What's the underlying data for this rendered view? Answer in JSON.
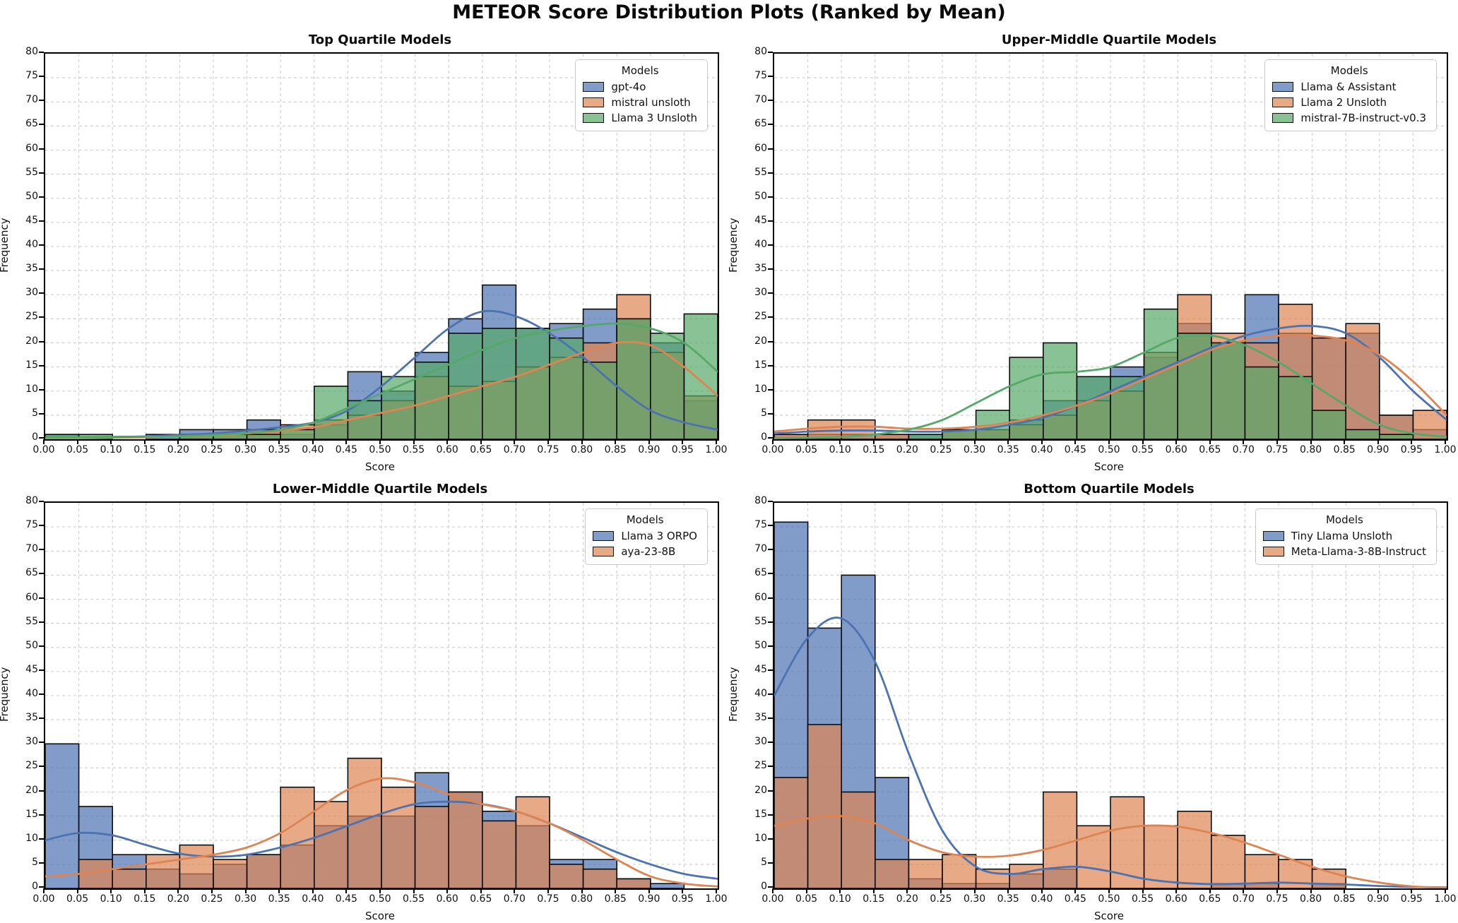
{
  "figure": {
    "title": "METEOR Score Distribution Plots (Ranked by Mean)"
  },
  "axes": {
    "xlabel": "Score",
    "ylabel": "Frequency",
    "xlim": [
      0,
      1
    ],
    "ylim": [
      0,
      80
    ],
    "x_ticks": [
      "0.00",
      "0.05",
      "0.10",
      "0.15",
      "0.20",
      "0.25",
      "0.30",
      "0.35",
      "0.40",
      "0.45",
      "0.50",
      "0.55",
      "0.60",
      "0.65",
      "0.70",
      "0.75",
      "0.80",
      "0.85",
      "0.90",
      "0.95",
      "1.00"
    ],
    "y_ticks": [
      "0",
      "5",
      "10",
      "15",
      "20",
      "25",
      "30",
      "35",
      "40",
      "45",
      "50",
      "55",
      "60",
      "65",
      "70",
      "75",
      "80"
    ],
    "grid": "dashed"
  },
  "palette": {
    "blue": "#4C72B0",
    "orange": "#DD8452",
    "green": "#55A868",
    "bar_edge": "#0d0d0d",
    "grid_color": "#cdcdcd"
  },
  "chart_data": [
    {
      "type": "histogram+kde",
      "title": "Top Quartile Models",
      "legend_title": "Models",
      "bin_start": 0,
      "bin_width": 0.05,
      "series": [
        {
          "name": "gpt-4o",
          "color": "#4C72B0",
          "counts": [
            1,
            0,
            0,
            1,
            2,
            2,
            4,
            1,
            3,
            14,
            10,
            18,
            25,
            32,
            23,
            24,
            27,
            25,
            20,
            8
          ],
          "kde": [
            0.4,
            0.4,
            0.5,
            0.6,
            0.9,
            1.2,
            1.8,
            2.5,
            3.5,
            6,
            11,
            17,
            23,
            26.5,
            25.5,
            22,
            17,
            11,
            6,
            3.5,
            2
          ]
        },
        {
          "name": "mistral unsloth",
          "color": "#DD8452",
          "counts": [
            0,
            0,
            0,
            0,
            1,
            1,
            2,
            3,
            4,
            5,
            8,
            13,
            11,
            12,
            15,
            17,
            20,
            30,
            18,
            9
          ],
          "kde": [
            0.2,
            0.2,
            0.3,
            0.4,
            0.6,
            0.8,
            1.2,
            1.8,
            2.5,
            4,
            5.5,
            7,
            9,
            11,
            13,
            15.5,
            18,
            20,
            19.5,
            15,
            9
          ]
        },
        {
          "name": "Llama 3 Unsloth",
          "color": "#55A868",
          "counts": [
            1,
            1,
            0,
            0,
            1,
            1,
            1,
            2,
            11,
            8,
            13,
            16,
            22,
            23,
            23,
            21,
            16,
            25,
            22,
            26
          ],
          "kde": [
            0.4,
            0.4,
            0.4,
            0.5,
            0.6,
            0.9,
            1.3,
            2,
            3.5,
            6.5,
            9.5,
            12.5,
            15.5,
            18.5,
            21,
            22.5,
            23.5,
            24,
            23,
            20,
            14
          ]
        }
      ]
    },
    {
      "type": "histogram+kde",
      "title": "Upper-Middle Quartile Models",
      "legend_title": "Models",
      "bin_start": 0,
      "bin_width": 0.05,
      "series": [
        {
          "name": "Llama & Assistant",
          "color": "#4C72B0",
          "counts": [
            1,
            1,
            1,
            1,
            1,
            2,
            2,
            4,
            8,
            13,
            15,
            17,
            24,
            20,
            30,
            22,
            21,
            22,
            5,
            2
          ],
          "kde": [
            1.2,
            1.6,
            1.8,
            1.8,
            1.6,
            1.6,
            2,
            3,
            4.5,
            7,
            10,
            13,
            16,
            19,
            21.5,
            23,
            23.5,
            22,
            17,
            10,
            4
          ]
        },
        {
          "name": "Llama 2 Unsloth",
          "color": "#DD8452",
          "counts": [
            1,
            4,
            4,
            1,
            0,
            2,
            2,
            3,
            5,
            8,
            10,
            18,
            30,
            22,
            20,
            28,
            21,
            24,
            5,
            6
          ],
          "kde": [
            1.6,
            2.2,
            2.6,
            2.6,
            2.2,
            2.2,
            2.6,
            3.5,
            5,
            7,
            9.5,
            12.5,
            15.5,
            18.5,
            20.5,
            21.5,
            21.5,
            20.5,
            17.5,
            12,
            5
          ]
        },
        {
          "name": "mistral-7B-instruct-v0.3",
          "color": "#55A868",
          "counts": [
            0,
            0,
            0,
            0,
            1,
            2,
            6,
            17,
            20,
            13,
            13,
            27,
            22,
            20,
            15,
            13,
            6,
            2,
            1,
            0
          ],
          "kde": [
            0.2,
            0.3,
            0.5,
            1,
            2,
            4,
            7.5,
            11,
            13.5,
            14,
            15,
            18,
            21,
            21.5,
            19.5,
            16,
            11.5,
            7,
            3,
            1.2,
            0.5
          ]
        }
      ]
    },
    {
      "type": "histogram+kde",
      "title": "Lower-Middle Quartile Models",
      "legend_title": "Models",
      "bin_start": 0,
      "bin_width": 0.05,
      "series": [
        {
          "name": "Llama 3 ORPO",
          "color": "#4C72B0",
          "counts": [
            30,
            17,
            7,
            4,
            3,
            5,
            7,
            9,
            13,
            15,
            15,
            24,
            20,
            16,
            13,
            6,
            6,
            2,
            1,
            0
          ],
          "kde": [
            10,
            11.5,
            11,
            9,
            7.2,
            6.6,
            7,
            8.5,
            10.5,
            13,
            15.5,
            17.5,
            18,
            17.5,
            16,
            13.5,
            10.5,
            7.5,
            5,
            3,
            2
          ]
        },
        {
          "name": "aya-23-8B",
          "color": "#DD8452",
          "counts": [
            0,
            6,
            4,
            7,
            9,
            6,
            7,
            21,
            18,
            27,
            21,
            17,
            20,
            14,
            19,
            5,
            4,
            2,
            0,
            0
          ],
          "kde": [
            2.5,
            3,
            4,
            5,
            6,
            7,
            8.5,
            11.5,
            16,
            20.5,
            22.8,
            22,
            19.5,
            17.5,
            16,
            13.5,
            10,
            6,
            2.5,
            1,
            0.4
          ]
        }
      ]
    },
    {
      "type": "histogram+kde",
      "title": "Bottom Quartile Models",
      "legend_title": "Models",
      "bin_start": 0,
      "bin_width": 0.05,
      "series": [
        {
          "name": "Tiny Llama Unsloth",
          "color": "#4C72B0",
          "counts": [
            76,
            54,
            65,
            23,
            2,
            1,
            1,
            3,
            4,
            0,
            0,
            0,
            0,
            1,
            1,
            0,
            1,
            0,
            0,
            0
          ],
          "kde": [
            40,
            52,
            56,
            47,
            28,
            12,
            4.5,
            3,
            4,
            4.5,
            3.5,
            2,
            1.2,
            0.9,
            1,
            1.2,
            1,
            0.8,
            0.5,
            0.3,
            0.2
          ]
        },
        {
          "name": "Meta-Llama-3-8B-Instruct",
          "color": "#DD8452",
          "counts": [
            23,
            34,
            20,
            6,
            6,
            7,
            4,
            5,
            20,
            13,
            19,
            13,
            16,
            11,
            7,
            6,
            4,
            0,
            0,
            0
          ],
          "kde": [
            13,
            14.5,
            15,
            13.5,
            10,
            7.5,
            6.6,
            6.8,
            8,
            10,
            12,
            13,
            12.8,
            11.5,
            9.5,
            7,
            4.5,
            2.5,
            1.2,
            0.4,
            0.1
          ]
        }
      ]
    }
  ]
}
